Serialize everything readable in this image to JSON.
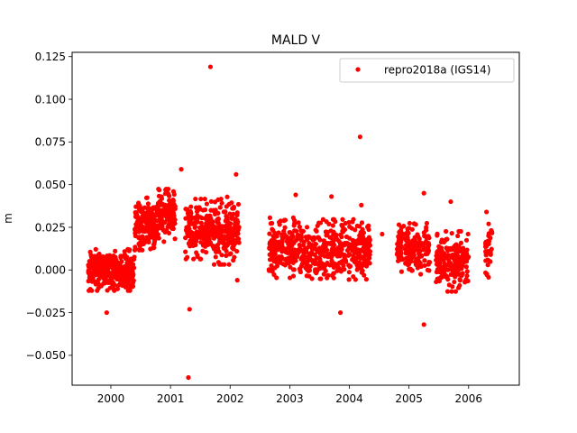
{
  "chart_data": {
    "type": "scatter",
    "title": "MALD V",
    "xlabel": "",
    "ylabel": "m",
    "xlim": [
      1999.35,
      2006.85
    ],
    "ylim": [
      -0.0675,
      0.1275
    ],
    "x_ticks": [
      2000,
      2001,
      2002,
      2003,
      2004,
      2005,
      2006
    ],
    "x_tick_labels": [
      "2000",
      "2001",
      "2002",
      "2003",
      "2004",
      "2005",
      "2006"
    ],
    "y_ticks": [
      -0.05,
      -0.025,
      0.0,
      0.025,
      0.05,
      0.075,
      0.1,
      0.125
    ],
    "y_tick_labels": [
      "−0.050",
      "−0.025",
      "0.000",
      "0.025",
      "0.050",
      "0.075",
      "0.100",
      "0.125"
    ],
    "grid": false,
    "legend": {
      "placement": "top-right",
      "entries": [
        "repro2018a (IGS14)"
      ]
    },
    "series": [
      {
        "name": "repro2018a (IGS14)",
        "color": "#ff0000",
        "marker": "circle",
        "clusters": [
          {
            "x_range": [
              1999.62,
              2000.4
            ],
            "y_mean": 0.0,
            "y_sd": 0.0055,
            "count": 330
          },
          {
            "x_range": [
              2000.4,
              2000.78
            ],
            "y_mean": 0.027,
            "y_sd": 0.007,
            "count": 180
          },
          {
            "x_range": [
              2000.78,
              2001.08
            ],
            "y_mean": 0.032,
            "y_sd": 0.007,
            "count": 120
          },
          {
            "x_range": [
              2001.25,
              2001.7
            ],
            "y_mean": 0.024,
            "y_sd": 0.008,
            "count": 170
          },
          {
            "x_range": [
              2001.7,
              2002.15
            ],
            "y_mean": 0.023,
            "y_sd": 0.009,
            "count": 170
          },
          {
            "x_range": [
              2002.65,
              2003.15
            ],
            "y_mean": 0.013,
            "y_sd": 0.008,
            "count": 170
          },
          {
            "x_range": [
              2003.15,
              2003.55
            ],
            "y_mean": 0.01,
            "y_sd": 0.008,
            "count": 120
          },
          {
            "x_range": [
              2003.55,
              2004.35
            ],
            "y_mean": 0.012,
            "y_sd": 0.008,
            "count": 260
          },
          {
            "x_range": [
              2004.8,
              2005.35
            ],
            "y_mean": 0.012,
            "y_sd": 0.007,
            "count": 170
          },
          {
            "x_range": [
              2005.45,
              2006.0
            ],
            "y_mean": 0.005,
            "y_sd": 0.008,
            "count": 190
          },
          {
            "x_range": [
              2006.28,
              2006.4
            ],
            "y_mean": 0.012,
            "y_sd": 0.01,
            "count": 35
          }
        ],
        "outliers": [
          {
            "x": 2001.67,
            "y": 0.119
          },
          {
            "x": 2004.18,
            "y": 0.078
          },
          {
            "x": 2001.3,
            "y": -0.063
          },
          {
            "x": 2001.32,
            "y": -0.023
          },
          {
            "x": 2005.25,
            "y": -0.032
          },
          {
            "x": 2003.85,
            "y": -0.025
          },
          {
            "x": 1999.93,
            "y": -0.025
          },
          {
            "x": 2001.18,
            "y": 0.059
          },
          {
            "x": 2005.25,
            "y": 0.045
          },
          {
            "x": 2003.7,
            "y": 0.043
          },
          {
            "x": 2002.1,
            "y": 0.056
          },
          {
            "x": 2003.1,
            "y": 0.044
          },
          {
            "x": 2004.2,
            "y": 0.038
          },
          {
            "x": 2005.7,
            "y": 0.04
          },
          {
            "x": 2006.3,
            "y": 0.034
          },
          {
            "x": 2004.55,
            "y": 0.021
          },
          {
            "x": 2002.12,
            "y": -0.006
          },
          {
            "x": 2001.05,
            "y": 0.046
          }
        ]
      }
    ]
  }
}
